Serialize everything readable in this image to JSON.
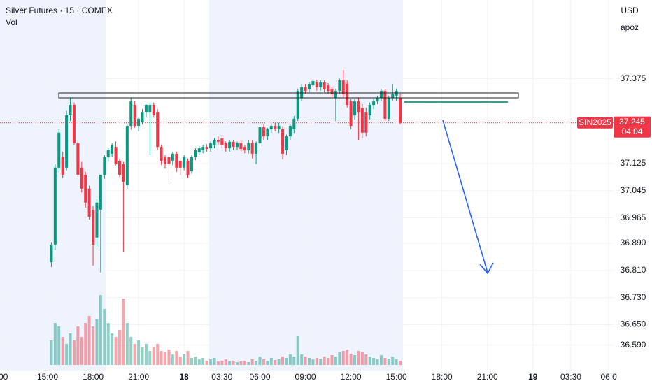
{
  "chart_data": {
    "type": "candlestick",
    "title": "Silver Futures · 15 · COMEX",
    "volume_label": "Vol",
    "currency": "USD",
    "user": "apoz",
    "up_color": "#089981",
    "down_color": "#f23645",
    "ylim": [
      36.515,
      37.607
    ],
    "yticks": [
      37.375,
      37.125,
      37.045,
      36.965,
      {
        "value": 36.89,
        "label": "36.890"
      },
      {
        "value": 36.81,
        "label": "36.810"
      },
      {
        "value": 36.73,
        "label": "36.730"
      },
      {
        "value": 36.65,
        "label": "36.650"
      },
      {
        "value": 36.59,
        "label": "36.590"
      }
    ],
    "xtick_labels": [
      ":00",
      "15:00",
      "18:00",
      "21:00",
      "18",
      "03:30",
      "06:00",
      "09:00",
      "12:00",
      "15:00",
      "18:00",
      "21:00",
      "19",
      "03:30",
      "06:0"
    ],
    "last_price": 37.245,
    "symbol_tag": "SIN2025",
    "countdown": "04:04",
    "open": [
      36.834,
      36.886,
      37.113,
      37.144,
      37.113,
      37.267,
      37.298,
      37.185,
      37.113,
      37.092,
      37.051,
      36.989,
      36.907,
      36.989,
      37.092,
      37.144,
      37.154,
      37.174,
      37.133,
      37.123,
      37.061,
      37.236,
      37.298,
      37.236,
      37.246,
      37.277,
      37.277,
      37.298,
      37.277,
      37.174,
      37.144,
      37.144,
      37.133,
      37.154,
      37.133,
      37.113,
      37.133,
      37.102,
      37.144,
      37.158,
      37.164,
      37.174,
      37.17,
      37.179,
      37.195,
      37.199,
      37.185,
      37.17,
      37.189,
      37.174,
      37.185,
      37.174,
      37.164,
      37.185,
      37.154,
      37.185,
      37.232,
      37.205,
      37.226,
      37.236,
      37.226,
      37.226,
      37.164,
      37.205,
      37.226,
      37.257,
      37.319,
      37.35,
      37.343,
      37.356,
      37.364,
      37.35,
      37.364,
      37.356,
      37.343,
      37.319,
      37.339,
      37.37,
      37.36,
      37.308,
      37.267,
      37.308,
      37.288,
      37.277,
      37.267,
      37.298,
      37.308,
      37.319,
      37.339,
      37.257,
      37.319,
      37.325,
      37.319
    ],
    "high": [
      36.893,
      37.123,
      37.226,
      37.16,
      37.28,
      37.319,
      37.305,
      37.195,
      37.13,
      37.1,
      37.06,
      37.0,
      37.02,
      37.092,
      37.15,
      37.17,
      37.185,
      37.19,
      37.14,
      37.13,
      37.24,
      37.319,
      37.31,
      37.26,
      37.285,
      37.3,
      37.305,
      37.305,
      37.285,
      37.18,
      37.15,
      37.155,
      37.16,
      37.16,
      37.14,
      37.15,
      37.14,
      37.15,
      37.17,
      37.176,
      37.18,
      37.182,
      37.19,
      37.2,
      37.205,
      37.21,
      37.19,
      37.195,
      37.195,
      37.19,
      37.195,
      37.18,
      37.195,
      37.195,
      37.19,
      37.24,
      37.24,
      37.23,
      37.245,
      37.245,
      37.245,
      37.235,
      37.21,
      37.24,
      37.265,
      37.345,
      37.36,
      37.36,
      37.365,
      37.375,
      37.372,
      37.37,
      37.37,
      37.362,
      37.35,
      37.345,
      37.375,
      37.401,
      37.37,
      37.315,
      37.315,
      37.32,
      37.3,
      37.29,
      37.305,
      37.315,
      37.325,
      37.345,
      37.345,
      37.325,
      37.36,
      37.345,
      37.33
    ],
    "low": [
      36.82,
      36.87,
      37.1,
      37.082,
      37.105,
      37.25,
      37.18,
      37.085,
      37.04,
      36.995,
      36.96,
      36.824,
      36.88,
      36.804,
      37.08,
      37.13,
      37.145,
      37.12,
      37.085,
      36.865,
      37.05,
      37.225,
      37.23,
      37.22,
      37.24,
      37.26,
      37.15,
      37.26,
      37.165,
      37.12,
      37.11,
      37.071,
      37.12,
      37.1,
      37.09,
      37.105,
      37.082,
      37.095,
      37.135,
      37.15,
      37.155,
      37.16,
      37.16,
      37.17,
      37.18,
      37.17,
      37.16,
      37.16,
      37.165,
      37.165,
      37.16,
      37.155,
      37.155,
      37.14,
      37.123,
      37.175,
      37.195,
      37.195,
      37.215,
      37.22,
      37.215,
      37.137,
      37.15,
      37.195,
      37.215,
      37.25,
      37.31,
      37.33,
      37.335,
      37.35,
      37.34,
      37.34,
      37.335,
      37.33,
      37.32,
      37.25,
      37.33,
      37.32,
      37.29,
      37.226,
      37.255,
      37.195,
      37.2,
      37.205,
      37.255,
      37.285,
      37.3,
      37.31,
      37.25,
      37.25,
      37.31,
      37.31,
      37.24
    ],
    "close": [
      36.886,
      37.113,
      37.216,
      37.092,
      37.267,
      37.298,
      37.185,
      37.092,
      37.051,
      37.01,
      36.968,
      36.886,
      37.01,
      37.092,
      37.144,
      37.164,
      37.179,
      37.123,
      37.092,
      37.071,
      37.236,
      37.308,
      37.236,
      37.257,
      37.277,
      37.298,
      37.298,
      37.267,
      37.174,
      37.133,
      37.123,
      37.123,
      37.154,
      37.113,
      37.113,
      37.144,
      37.092,
      37.144,
      37.164,
      37.17,
      37.174,
      37.168,
      37.185,
      37.195,
      37.189,
      37.179,
      37.17,
      37.189,
      37.174,
      37.185,
      37.168,
      37.164,
      37.185,
      37.154,
      37.185,
      37.232,
      37.205,
      37.226,
      37.236,
      37.226,
      37.236,
      37.154,
      37.205,
      37.236,
      37.257,
      37.339,
      37.35,
      37.339,
      37.36,
      37.368,
      37.35,
      37.364,
      37.343,
      37.339,
      37.329,
      37.339,
      37.37,
      37.329,
      37.298,
      37.236,
      37.308,
      37.277,
      37.216,
      37.216,
      37.298,
      37.308,
      37.319,
      37.339,
      37.257,
      37.319,
      37.329,
      37.339,
      37.245
    ],
    "volume": [
      35,
      60,
      55,
      40,
      30,
      45,
      35,
      55,
      40,
      60,
      70,
      55,
      65,
      100,
      80,
      60,
      45,
      40,
      50,
      95,
      60,
      40,
      30,
      35,
      25,
      30,
      20,
      25,
      30,
      20,
      18,
      22,
      15,
      20,
      12,
      15,
      20,
      10,
      12,
      8,
      10,
      6,
      8,
      10,
      5,
      6,
      8,
      5,
      6,
      4,
      5,
      6,
      4,
      8,
      6,
      12,
      8,
      6,
      10,
      7,
      8,
      12,
      10,
      15,
      12,
      42,
      15,
      12,
      10,
      8,
      10,
      9,
      12,
      10,
      14,
      12,
      18,
      20,
      22,
      16,
      14,
      20,
      18,
      15,
      12,
      10,
      8,
      14,
      10,
      9,
      12,
      8,
      6
    ]
  }
}
